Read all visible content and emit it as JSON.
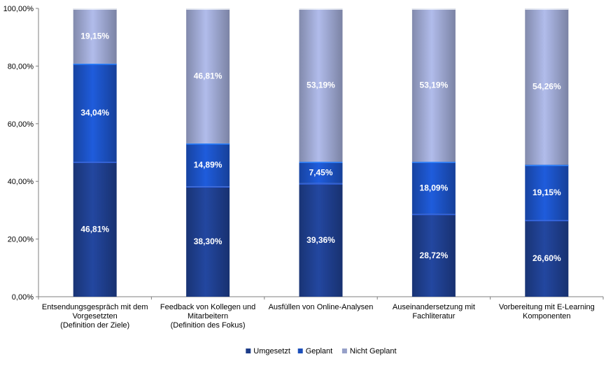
{
  "chart_data": {
    "type": "bar",
    "stacked": true,
    "percent": true,
    "categories": [
      [
        "Entsendungsgespräch mit dem",
        "Vorgesetzten",
        "(Definition der Ziele)"
      ],
      [
        "Feedback von Kollegen und",
        "Mitarbeitern",
        "(Definition des Fokus)"
      ],
      [
        "Ausfüllen von Online-Analysen"
      ],
      [
        "Auseinandersetzung mit",
        "Fachliteratur"
      ],
      [
        "Vorbereitung mit E-Learning",
        "Komponenten"
      ]
    ],
    "series": [
      {
        "name": "Umgesetzt",
        "values": [
          46.81,
          38.3,
          39.36,
          28.72,
          26.6
        ],
        "labels": [
          "46,81%",
          "38,30%",
          "39,36%",
          "28,72%",
          "26,60%"
        ],
        "color": "#1f3f8f"
      },
      {
        "name": "Geplant",
        "values": [
          34.04,
          14.89,
          7.45,
          18.09,
          19.15
        ],
        "labels": [
          "34,04%",
          "14,89%",
          "7,45%",
          "18,09%",
          "19,15%"
        ],
        "color": "#1c52c4"
      },
      {
        "name": "Nicht Geplant",
        "values": [
          19.15,
          46.81,
          53.19,
          53.19,
          54.26
        ],
        "labels": [
          "19,15%",
          "46,81%",
          "53,19%",
          "53,19%",
          "54,26%"
        ],
        "color": "#9ea8d2"
      }
    ],
    "yticks": [
      "0,00%",
      "20,00%",
      "40,00%",
      "60,00%",
      "80,00%",
      "100,00%"
    ],
    "ylim": [
      0,
      100
    ],
    "grid": false,
    "legend_position": "bottom-center"
  }
}
